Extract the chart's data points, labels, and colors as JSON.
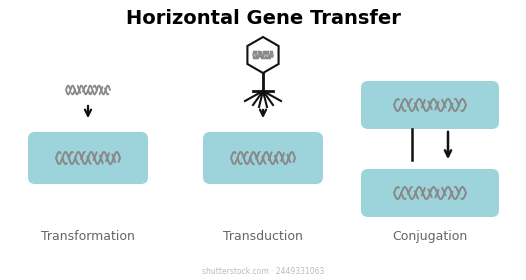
{
  "title": "Horizontal Gene Transfer",
  "title_fontsize": 14,
  "title_fontweight": "bold",
  "background_color": "#ffffff",
  "box_color": "#9dd4dc",
  "labels": [
    "Transformation",
    "Transduction",
    "Conjugation"
  ],
  "label_fontsize": 9,
  "label_color": "#666666",
  "arrow_color": "#111111",
  "dna_color": "#888888",
  "phage_color": "#111111",
  "phage_head_color": "#ffffff",
  "watermark": "shutterstock.com · 2449331063"
}
